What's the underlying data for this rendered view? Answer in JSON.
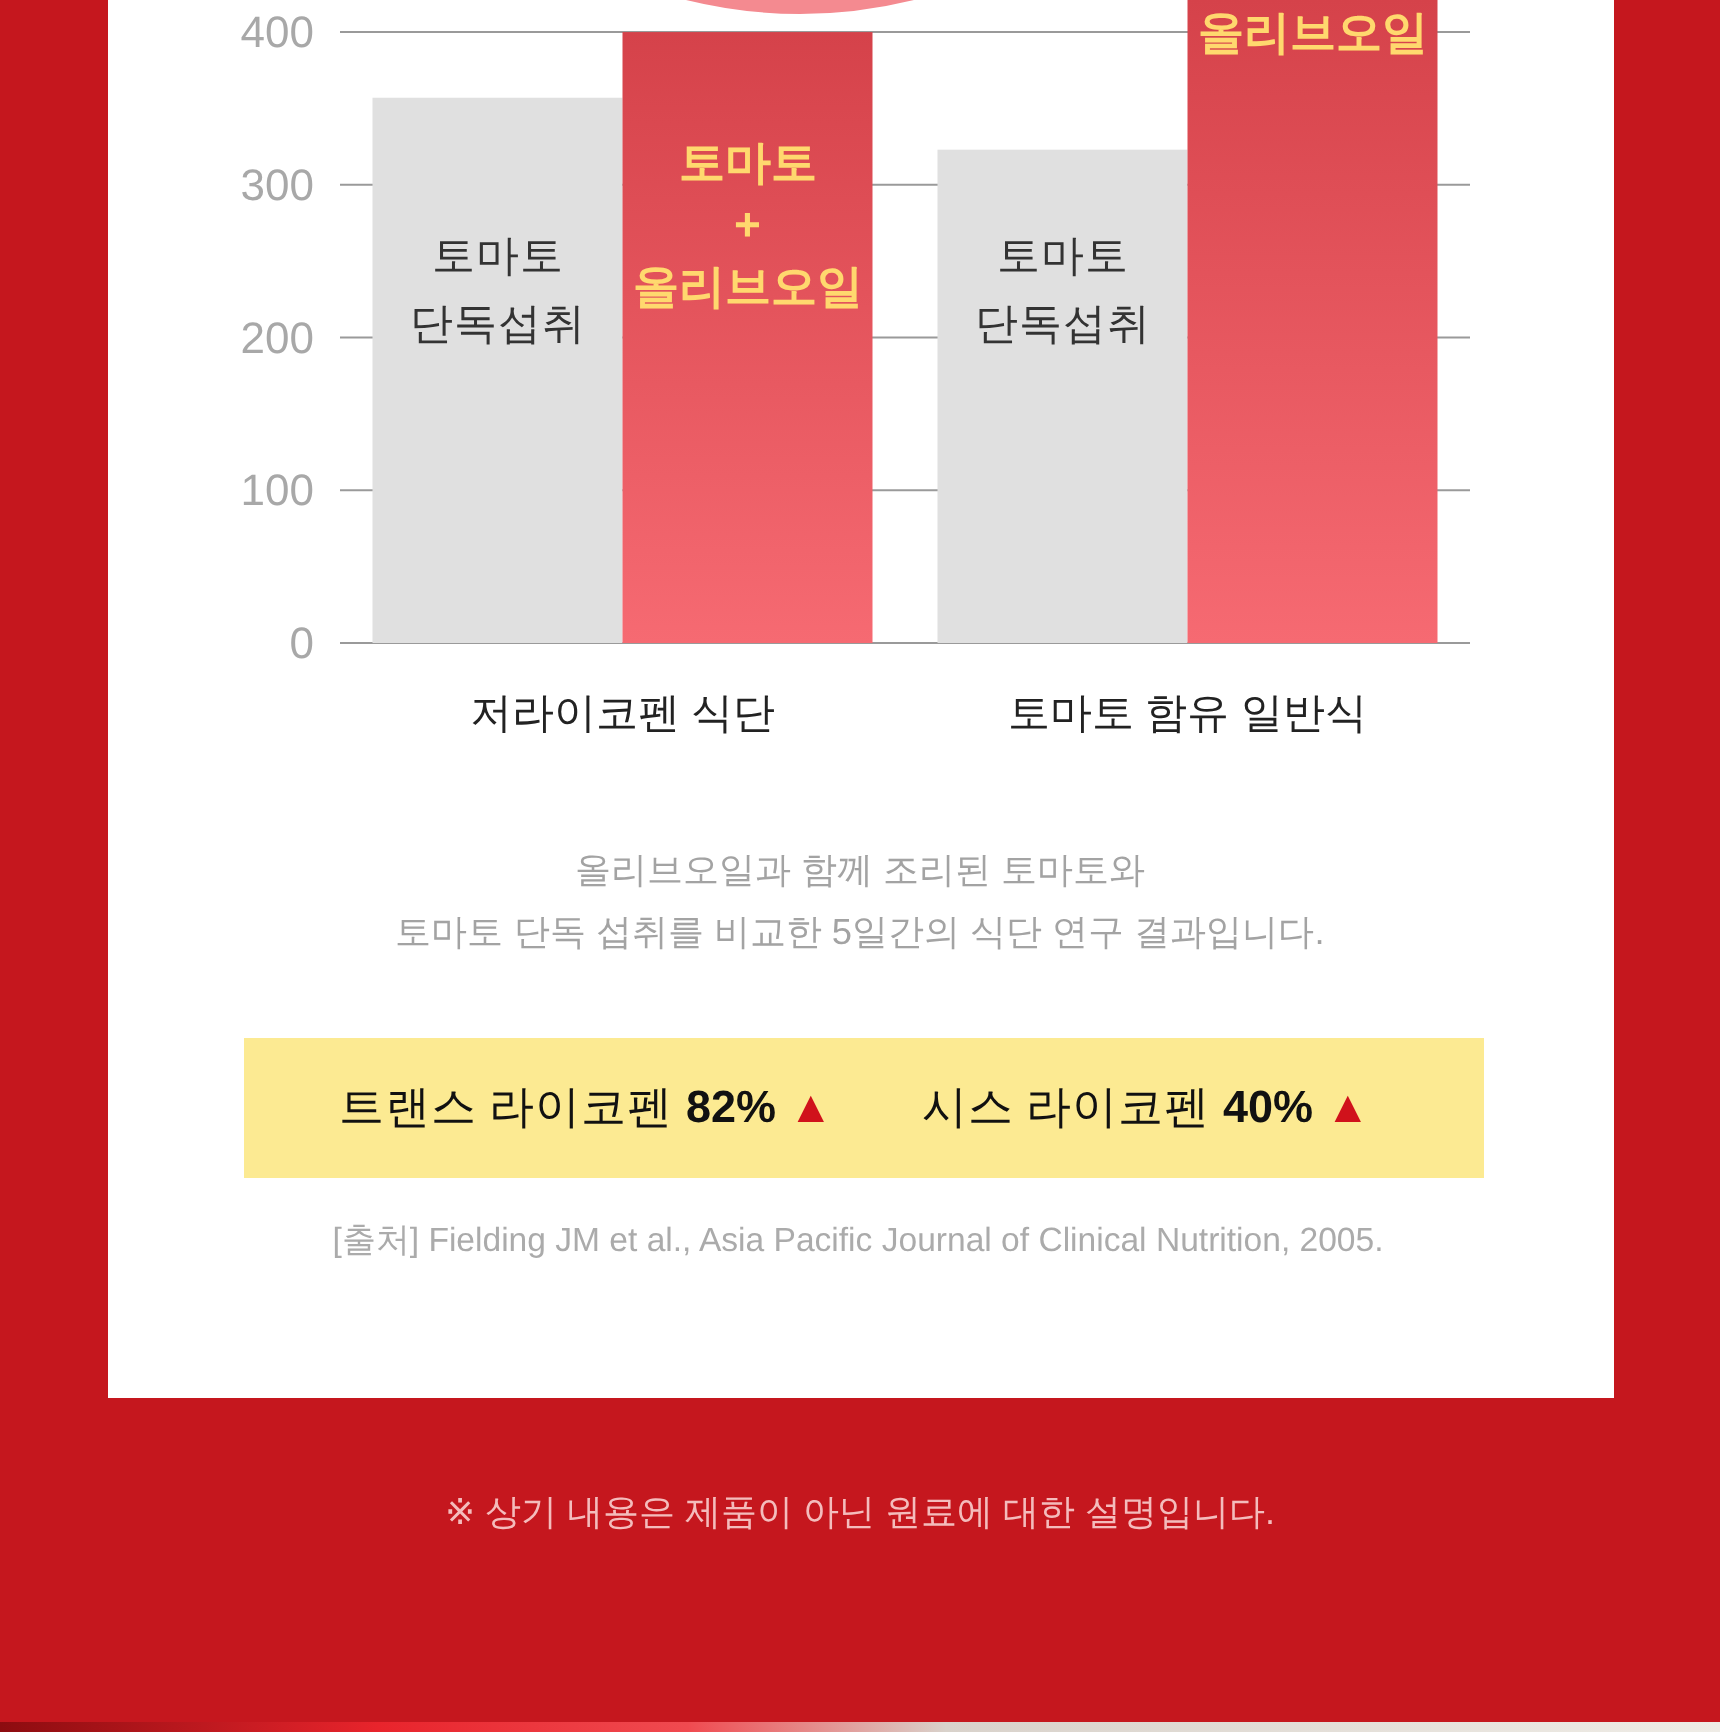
{
  "chart_data": {
    "type": "bar",
    "subtitle": "올리브오일과 함께 조리된 토마토와\n토마토 단독 섭취를 비교한 5일간의 식단 연구 결과입니다.",
    "categories": [
      "저라이코펜 식단",
      "토마토 함유 일반식"
    ],
    "series": [
      {
        "color": "#e0e0e0",
        "values": [
          357,
          323
        ],
        "value_labels": [
          "토마토 단독섭취",
          "토마토 단독섭취"
        ]
      },
      {
        "color": "#e84850",
        "values": [
          400,
          421
        ],
        "value_labels": [
          "토마토 + 올리브오일",
          "올리브오일"
        ]
      }
    ],
    "ylim": [
      0,
      421
    ],
    "yticks": [
      0,
      100,
      200,
      300,
      400
    ],
    "grid": "y",
    "annotations": [
      "트랜스 라이코펜 82% ▲",
      "시스 라이코펜 40% ▲",
      "[출처] Fielding JM et al., Asia Pacific Journal of Clinical Nutrition, 2005.",
      "※ 상기 내용은 제품이 아닌 원료에 대한 설명입니다."
    ]
  }
}
